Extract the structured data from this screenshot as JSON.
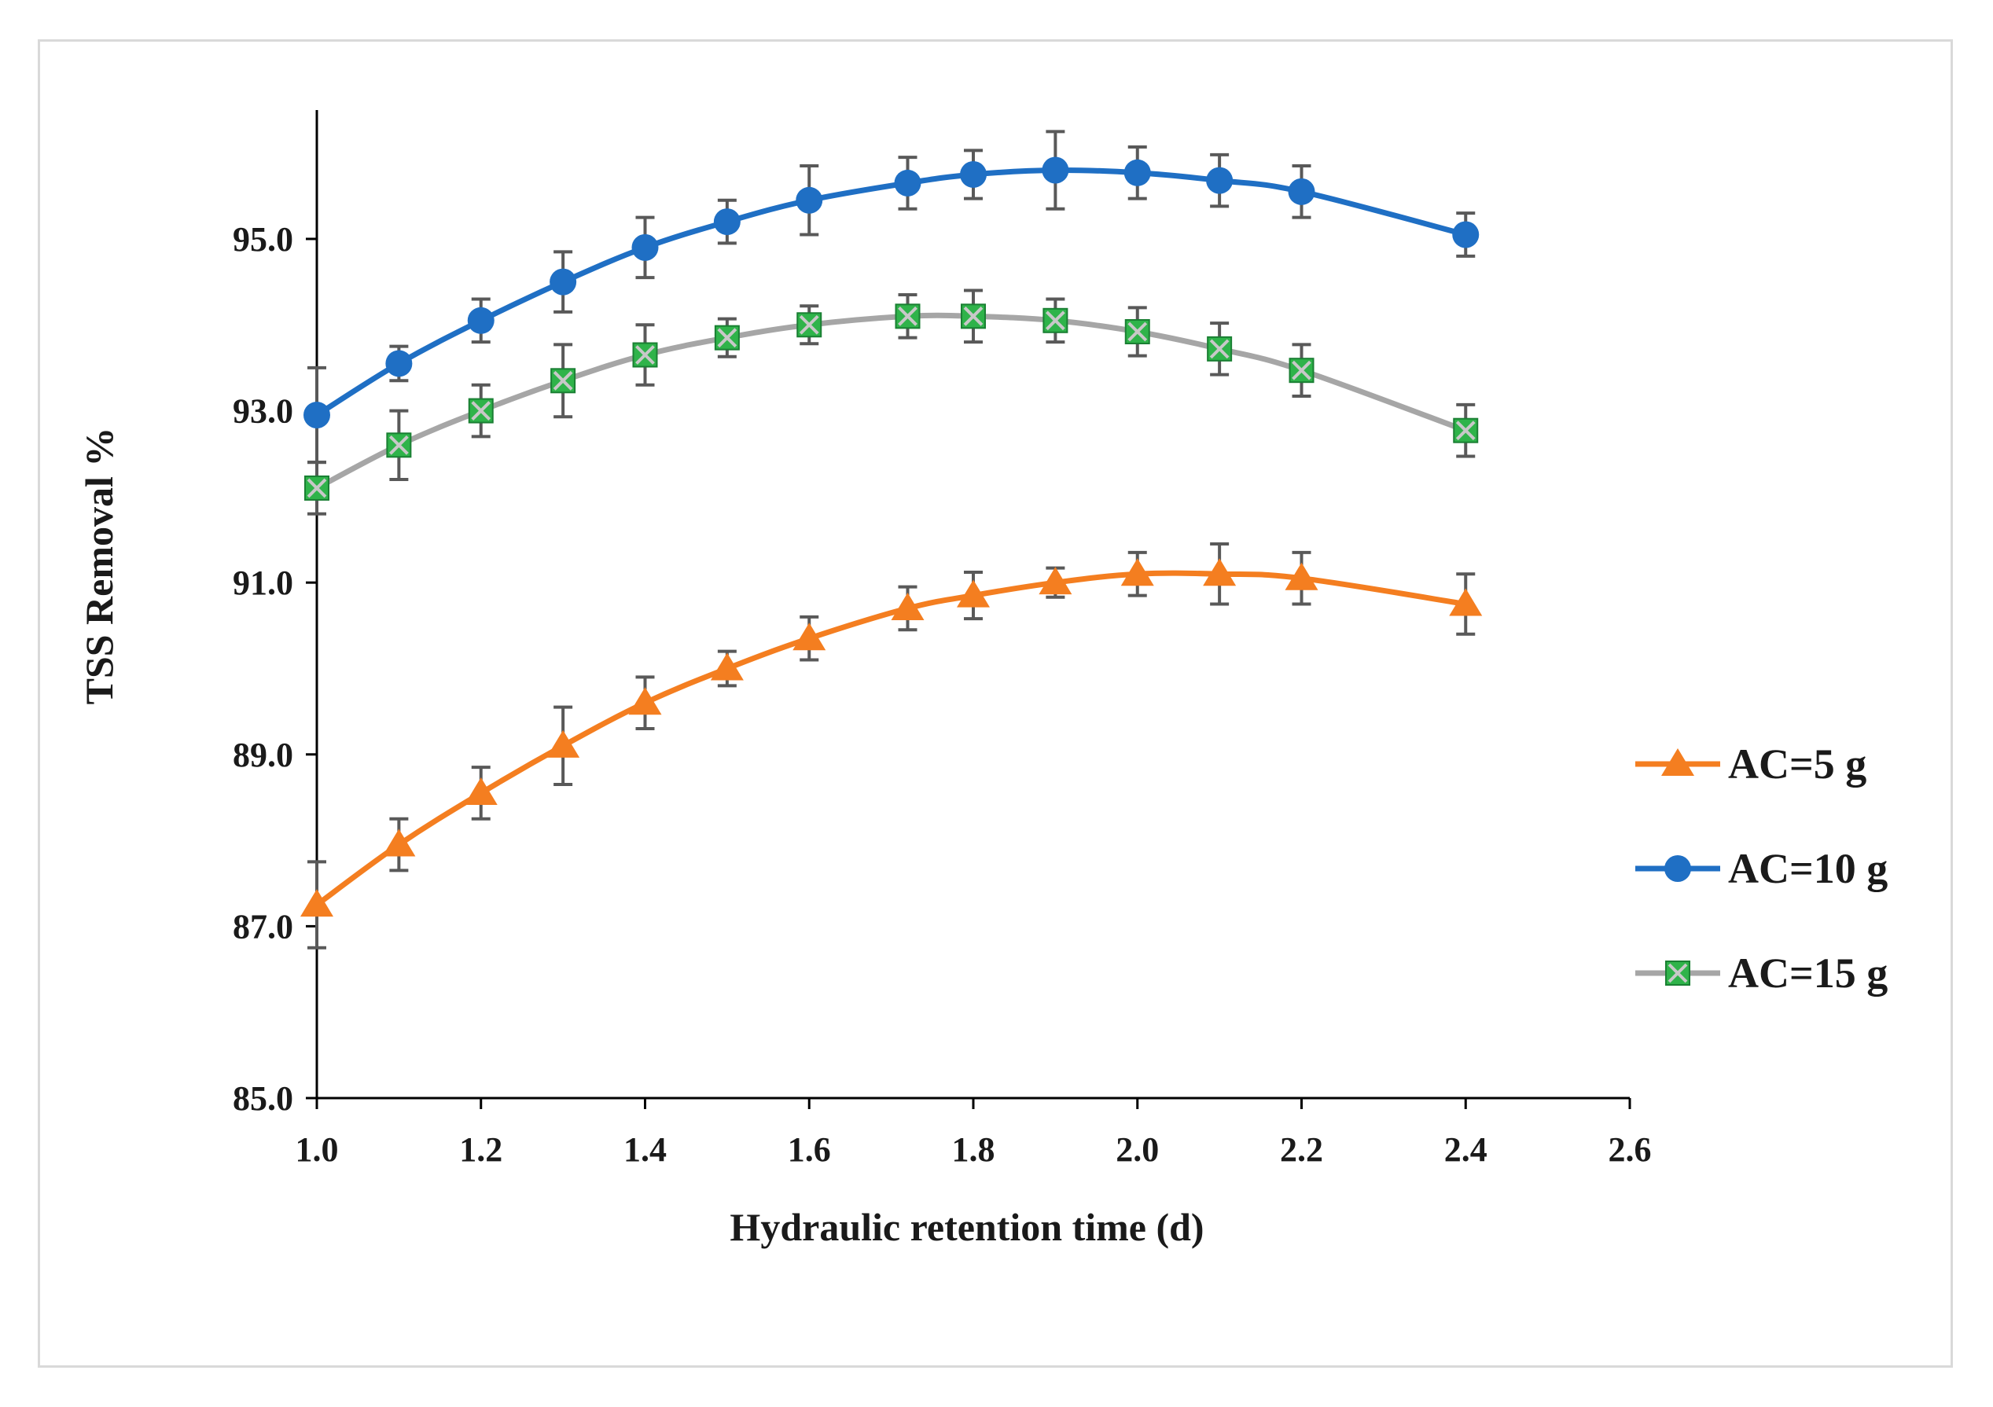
{
  "chart_data": {
    "type": "line",
    "title": "",
    "xlabel": "Hydraulic retention time (d)",
    "ylabel": "TSS Removal %",
    "xlim": [
      1.0,
      2.6
    ],
    "ylim": [
      85.0,
      96.5
    ],
    "x_ticks": [
      "1.0",
      "1.2",
      "1.4",
      "1.6",
      "1.8",
      "2.0",
      "2.2",
      "2.4",
      "2.6"
    ],
    "y_ticks": [
      "85.0",
      "87.0",
      "89.0",
      "91.0",
      "93.0",
      "95.0"
    ],
    "legend_position": "right",
    "grid": false,
    "series": [
      {
        "name": "AC=5 g",
        "color": "#F47E20",
        "marker": "triangle",
        "x": [
          1.0,
          1.1,
          1.2,
          1.3,
          1.4,
          1.5,
          1.6,
          1.72,
          1.8,
          1.9,
          2.0,
          2.1,
          2.2,
          2.4
        ],
        "values": [
          87.25,
          87.95,
          88.55,
          89.1,
          89.6,
          90.0,
          90.35,
          90.7,
          90.85,
          91.0,
          91.1,
          91.1,
          91.05,
          90.75
        ],
        "error": [
          0.5,
          0.3,
          0.3,
          0.45,
          0.3,
          0.2,
          0.25,
          0.25,
          0.27,
          0.17,
          0.25,
          0.35,
          0.3,
          0.35
        ]
      },
      {
        "name": "AC=10 g",
        "color": "#1F6FC4",
        "marker": "circle",
        "x": [
          1.0,
          1.1,
          1.2,
          1.3,
          1.4,
          1.5,
          1.6,
          1.72,
          1.8,
          1.9,
          2.0,
          2.1,
          2.2,
          2.4
        ],
        "values": [
          92.95,
          93.55,
          94.05,
          94.5,
          94.9,
          95.2,
          95.45,
          95.65,
          95.75,
          95.8,
          95.77,
          95.68,
          95.55,
          95.05
        ],
        "error": [
          0.55,
          0.2,
          0.25,
          0.35,
          0.35,
          0.25,
          0.4,
          0.3,
          0.28,
          0.45,
          0.3,
          0.3,
          0.3,
          0.25
        ]
      },
      {
        "name": "AC=15 g",
        "color": "#A6A6A6",
        "marker": "square-x",
        "marker_fill": "#2FB34A",
        "x": [
          1.0,
          1.1,
          1.2,
          1.3,
          1.4,
          1.5,
          1.6,
          1.72,
          1.8,
          1.9,
          2.0,
          2.1,
          2.2,
          2.4
        ],
        "values": [
          92.1,
          92.6,
          93.0,
          93.35,
          93.65,
          93.85,
          94.0,
          94.1,
          94.1,
          94.05,
          93.92,
          93.72,
          93.47,
          92.77
        ],
        "error": [
          0.3,
          0.4,
          0.3,
          0.42,
          0.35,
          0.22,
          0.22,
          0.25,
          0.3,
          0.25,
          0.28,
          0.3,
          0.3,
          0.3
        ]
      }
    ]
  }
}
